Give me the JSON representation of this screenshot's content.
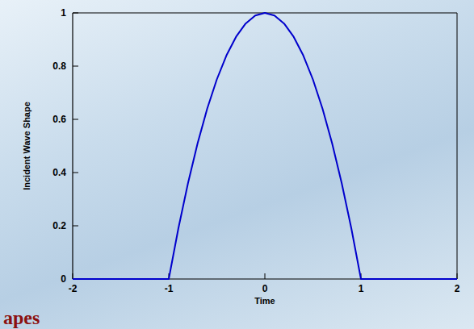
{
  "chart_data": {
    "type": "line",
    "x_label": "Time",
    "y_label": "Incident Wave Shape",
    "annotation": "apes",
    "x": [
      -2,
      -1,
      -0.9,
      -0.8,
      -0.7,
      -0.6,
      -0.5,
      -0.4,
      -0.3,
      -0.2,
      -0.1,
      0,
      0.1,
      0.2,
      0.3,
      0.4,
      0.5,
      0.6,
      0.7,
      0.8,
      0.9,
      1,
      2
    ],
    "series": [
      {
        "color": "#0000cc",
        "values": [
          0,
          0,
          0.19,
          0.36,
          0.51,
          0.64,
          0.75,
          0.84,
          0.91,
          0.96,
          0.99,
          1,
          0.99,
          0.96,
          0.91,
          0.84,
          0.75,
          0.64,
          0.51,
          0.36,
          0.19,
          0,
          0
        ]
      }
    ],
    "xlim": [
      -2,
      2
    ],
    "ylim": [
      0,
      1
    ],
    "xticks": [
      -2,
      -1,
      0,
      1,
      2
    ],
    "yticks": [
      0,
      0.2,
      0.4,
      0.6,
      0.8,
      1
    ],
    "grid": false
  }
}
